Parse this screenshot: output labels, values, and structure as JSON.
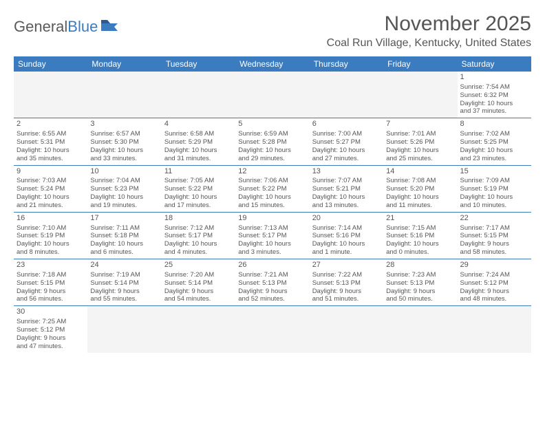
{
  "logo": {
    "part1": "General",
    "part2": "Blue"
  },
  "title": "November 2025",
  "location": "Coal Run Village, Kentucky, United States",
  "colors": {
    "header_bg": "#3b7bbf",
    "text": "#555555",
    "grid": "#3b7bbf"
  },
  "day_headers": [
    "Sunday",
    "Monday",
    "Tuesday",
    "Wednesday",
    "Thursday",
    "Friday",
    "Saturday"
  ],
  "weeks": [
    [
      {
        "empty": true
      },
      {
        "empty": true
      },
      {
        "empty": true
      },
      {
        "empty": true
      },
      {
        "empty": true
      },
      {
        "empty": true
      },
      {
        "num": "1",
        "sunrise": "Sunrise: 7:54 AM",
        "sunset": "Sunset: 6:32 PM",
        "daylight1": "Daylight: 10 hours",
        "daylight2": "and 37 minutes."
      }
    ],
    [
      {
        "num": "2",
        "sunrise": "Sunrise: 6:55 AM",
        "sunset": "Sunset: 5:31 PM",
        "daylight1": "Daylight: 10 hours",
        "daylight2": "and 35 minutes."
      },
      {
        "num": "3",
        "sunrise": "Sunrise: 6:57 AM",
        "sunset": "Sunset: 5:30 PM",
        "daylight1": "Daylight: 10 hours",
        "daylight2": "and 33 minutes."
      },
      {
        "num": "4",
        "sunrise": "Sunrise: 6:58 AM",
        "sunset": "Sunset: 5:29 PM",
        "daylight1": "Daylight: 10 hours",
        "daylight2": "and 31 minutes."
      },
      {
        "num": "5",
        "sunrise": "Sunrise: 6:59 AM",
        "sunset": "Sunset: 5:28 PM",
        "daylight1": "Daylight: 10 hours",
        "daylight2": "and 29 minutes."
      },
      {
        "num": "6",
        "sunrise": "Sunrise: 7:00 AM",
        "sunset": "Sunset: 5:27 PM",
        "daylight1": "Daylight: 10 hours",
        "daylight2": "and 27 minutes."
      },
      {
        "num": "7",
        "sunrise": "Sunrise: 7:01 AM",
        "sunset": "Sunset: 5:26 PM",
        "daylight1": "Daylight: 10 hours",
        "daylight2": "and 25 minutes."
      },
      {
        "num": "8",
        "sunrise": "Sunrise: 7:02 AM",
        "sunset": "Sunset: 5:25 PM",
        "daylight1": "Daylight: 10 hours",
        "daylight2": "and 23 minutes."
      }
    ],
    [
      {
        "num": "9",
        "sunrise": "Sunrise: 7:03 AM",
        "sunset": "Sunset: 5:24 PM",
        "daylight1": "Daylight: 10 hours",
        "daylight2": "and 21 minutes."
      },
      {
        "num": "10",
        "sunrise": "Sunrise: 7:04 AM",
        "sunset": "Sunset: 5:23 PM",
        "daylight1": "Daylight: 10 hours",
        "daylight2": "and 19 minutes."
      },
      {
        "num": "11",
        "sunrise": "Sunrise: 7:05 AM",
        "sunset": "Sunset: 5:22 PM",
        "daylight1": "Daylight: 10 hours",
        "daylight2": "and 17 minutes."
      },
      {
        "num": "12",
        "sunrise": "Sunrise: 7:06 AM",
        "sunset": "Sunset: 5:22 PM",
        "daylight1": "Daylight: 10 hours",
        "daylight2": "and 15 minutes."
      },
      {
        "num": "13",
        "sunrise": "Sunrise: 7:07 AM",
        "sunset": "Sunset: 5:21 PM",
        "daylight1": "Daylight: 10 hours",
        "daylight2": "and 13 minutes."
      },
      {
        "num": "14",
        "sunrise": "Sunrise: 7:08 AM",
        "sunset": "Sunset: 5:20 PM",
        "daylight1": "Daylight: 10 hours",
        "daylight2": "and 11 minutes."
      },
      {
        "num": "15",
        "sunrise": "Sunrise: 7:09 AM",
        "sunset": "Sunset: 5:19 PM",
        "daylight1": "Daylight: 10 hours",
        "daylight2": "and 10 minutes."
      }
    ],
    [
      {
        "num": "16",
        "sunrise": "Sunrise: 7:10 AM",
        "sunset": "Sunset: 5:19 PM",
        "daylight1": "Daylight: 10 hours",
        "daylight2": "and 8 minutes."
      },
      {
        "num": "17",
        "sunrise": "Sunrise: 7:11 AM",
        "sunset": "Sunset: 5:18 PM",
        "daylight1": "Daylight: 10 hours",
        "daylight2": "and 6 minutes."
      },
      {
        "num": "18",
        "sunrise": "Sunrise: 7:12 AM",
        "sunset": "Sunset: 5:17 PM",
        "daylight1": "Daylight: 10 hours",
        "daylight2": "and 4 minutes."
      },
      {
        "num": "19",
        "sunrise": "Sunrise: 7:13 AM",
        "sunset": "Sunset: 5:17 PM",
        "daylight1": "Daylight: 10 hours",
        "daylight2": "and 3 minutes."
      },
      {
        "num": "20",
        "sunrise": "Sunrise: 7:14 AM",
        "sunset": "Sunset: 5:16 PM",
        "daylight1": "Daylight: 10 hours",
        "daylight2": "and 1 minute."
      },
      {
        "num": "21",
        "sunrise": "Sunrise: 7:15 AM",
        "sunset": "Sunset: 5:16 PM",
        "daylight1": "Daylight: 10 hours",
        "daylight2": "and 0 minutes."
      },
      {
        "num": "22",
        "sunrise": "Sunrise: 7:17 AM",
        "sunset": "Sunset: 5:15 PM",
        "daylight1": "Daylight: 9 hours",
        "daylight2": "and 58 minutes."
      }
    ],
    [
      {
        "num": "23",
        "sunrise": "Sunrise: 7:18 AM",
        "sunset": "Sunset: 5:15 PM",
        "daylight1": "Daylight: 9 hours",
        "daylight2": "and 56 minutes."
      },
      {
        "num": "24",
        "sunrise": "Sunrise: 7:19 AM",
        "sunset": "Sunset: 5:14 PM",
        "daylight1": "Daylight: 9 hours",
        "daylight2": "and 55 minutes."
      },
      {
        "num": "25",
        "sunrise": "Sunrise: 7:20 AM",
        "sunset": "Sunset: 5:14 PM",
        "daylight1": "Daylight: 9 hours",
        "daylight2": "and 54 minutes."
      },
      {
        "num": "26",
        "sunrise": "Sunrise: 7:21 AM",
        "sunset": "Sunset: 5:13 PM",
        "daylight1": "Daylight: 9 hours",
        "daylight2": "and 52 minutes."
      },
      {
        "num": "27",
        "sunrise": "Sunrise: 7:22 AM",
        "sunset": "Sunset: 5:13 PM",
        "daylight1": "Daylight: 9 hours",
        "daylight2": "and 51 minutes."
      },
      {
        "num": "28",
        "sunrise": "Sunrise: 7:23 AM",
        "sunset": "Sunset: 5:13 PM",
        "daylight1": "Daylight: 9 hours",
        "daylight2": "and 50 minutes."
      },
      {
        "num": "29",
        "sunrise": "Sunrise: 7:24 AM",
        "sunset": "Sunset: 5:12 PM",
        "daylight1": "Daylight: 9 hours",
        "daylight2": "and 48 minutes."
      }
    ],
    [
      {
        "num": "30",
        "sunrise": "Sunrise: 7:25 AM",
        "sunset": "Sunset: 5:12 PM",
        "daylight1": "Daylight: 9 hours",
        "daylight2": "and 47 minutes."
      },
      {
        "empty": true
      },
      {
        "empty": true
      },
      {
        "empty": true
      },
      {
        "empty": true
      },
      {
        "empty": true
      },
      {
        "empty": true
      }
    ]
  ]
}
